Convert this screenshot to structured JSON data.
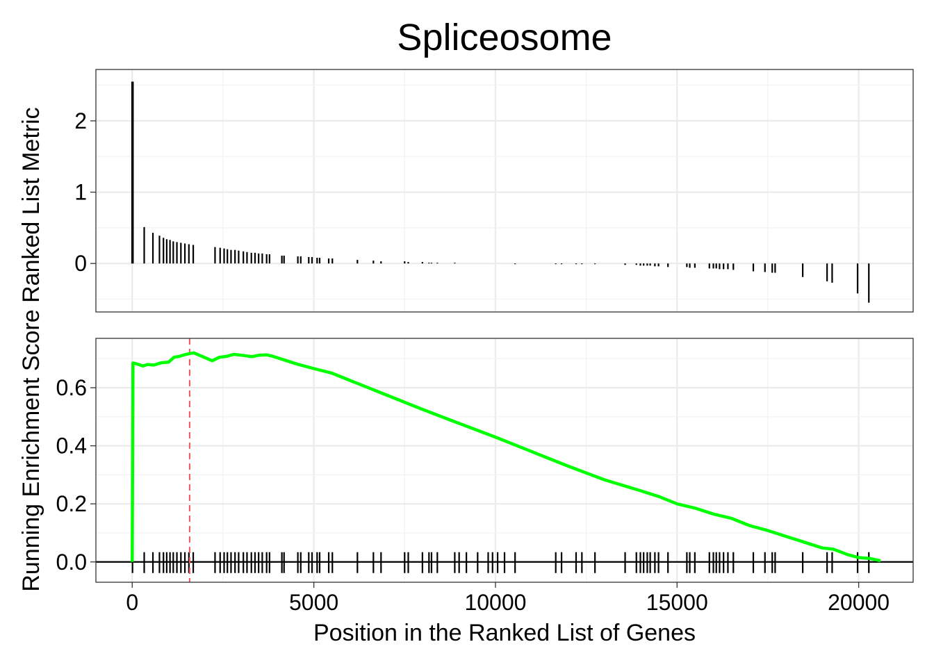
{
  "chart_data": {
    "type": "line",
    "title": "Spliceosome",
    "xlabel": "Position in the Ranked List of Genes",
    "ylabel": "Running Enrichment Score Ranked List Metric",
    "xlim": [
      -1000,
      21500
    ],
    "x_ticks": [
      "0",
      "5000",
      "10000",
      "15000",
      "20000"
    ],
    "x_tick_values": [
      0,
      5000,
      10000,
      15000,
      20000
    ],
    "grid": true,
    "panels": {
      "metric": {
        "ylim": [
          -0.68,
          2.72
        ],
        "y_ticks": [
          "0",
          "1",
          "2"
        ],
        "y_tick_values": [
          0,
          1,
          2
        ],
        "series": [
          {
            "type": "bar",
            "x": [
              8,
              330,
              570,
              750,
              860,
              950,
              1040,
              1130,
              1230,
              1340,
              1450,
              1560,
              1680,
              2280,
              2420,
              2530,
              2620,
              2720,
              2830,
              2930,
              3060,
              3160,
              3280,
              3380,
              3480,
              3580,
              3700,
              3780,
              4120,
              4180,
              4560,
              4640,
              4860,
              4950,
              5090,
              5160,
              5410,
              5510,
              6200,
              6640,
              6850,
              7500,
              7600,
              7990,
              8170,
              8240,
              8400,
              8880,
              9000,
              9200,
              9510,
              9800,
              9920,
              10060,
              10250,
              10540,
              11660,
              11820,
              12220,
              12380,
              12740,
              13570,
              13880,
              13990,
              14080,
              14180,
              14260,
              14390,
              14490,
              14750,
              15270,
              15350,
              15490,
              15890,
              16000,
              16080,
              16170,
              16280,
              16400,
              16550,
              17100,
              17420,
              17620,
              17700,
              18460,
              19130,
              19270,
              19970,
              20280
            ],
            "values": [
              2.55,
              0.51,
              0.43,
              0.39,
              0.36,
              0.34,
              0.33,
              0.31,
              0.3,
              0.29,
              0.28,
              0.27,
              0.26,
              0.23,
              0.22,
              0.21,
              0.2,
              0.19,
              0.19,
              0.18,
              0.17,
              0.16,
              0.15,
              0.15,
              0.14,
              0.14,
              0.13,
              0.13,
              0.11,
              0.11,
              0.1,
              0.1,
              0.09,
              0.09,
              0.08,
              0.08,
              0.07,
              0.07,
              0.05,
              0.04,
              0.03,
              0.03,
              0.02,
              0.02,
              0.01,
              0.01,
              0.01,
              0.01,
              0.0,
              0.0,
              0.0,
              0.0,
              0.0,
              0.0,
              0.0,
              -0.01,
              -0.01,
              -0.01,
              -0.01,
              -0.01,
              -0.01,
              -0.02,
              -0.02,
              -0.03,
              -0.03,
              -0.03,
              -0.03,
              -0.04,
              -0.04,
              -0.05,
              -0.05,
              -0.06,
              -0.06,
              -0.07,
              -0.07,
              -0.07,
              -0.08,
              -0.08,
              -0.08,
              -0.09,
              -0.11,
              -0.12,
              -0.13,
              -0.13,
              -0.19,
              -0.25,
              -0.27,
              -0.42,
              -0.55
            ],
            "color": "#000000"
          }
        ]
      },
      "enrichment": {
        "ylim": [
          -0.07,
          0.77
        ],
        "y_ticks": [
          "0.0",
          "0.2",
          "0.4",
          "0.6"
        ],
        "y_tick_values": [
          0.0,
          0.2,
          0.4,
          0.6
        ],
        "series": [
          {
            "type": "line",
            "x": [
              0,
              20,
              100,
              300,
              420,
              600,
              800,
              1000,
              1150,
              1300,
              1450,
              1600,
              1700,
              2200,
              2400,
              2600,
              2800,
              3000,
              3300,
              3500,
              3700,
              3850,
              4200,
              4500,
              5000,
              5500,
              6000,
              7000,
              8000,
              9000,
              10000,
              11000,
              12000,
              13000,
              14000,
              14500,
              15000,
              15500,
              16000,
              16500,
              17000,
              17500,
              18000,
              18500,
              19000,
              19300,
              19700,
              20000,
              20300,
              20600
            ],
            "values": [
              0.0,
              0.685,
              0.683,
              0.675,
              0.68,
              0.678,
              0.686,
              0.688,
              0.705,
              0.708,
              0.714,
              0.718,
              0.72,
              0.693,
              0.705,
              0.708,
              0.715,
              0.712,
              0.707,
              0.712,
              0.713,
              0.709,
              0.695,
              0.683,
              0.666,
              0.65,
              0.625,
              0.575,
              0.525,
              0.477,
              0.43,
              0.38,
              0.33,
              0.283,
              0.245,
              0.225,
              0.2,
              0.185,
              0.165,
              0.15,
              0.125,
              0.108,
              0.088,
              0.068,
              0.048,
              0.044,
              0.025,
              0.015,
              0.012,
              0.004
            ],
            "color": "#00ff00"
          }
        ],
        "peak_x": 1580,
        "peak_color": "#f0555f",
        "gene_hits_x": [
          8,
          330,
          570,
          750,
          860,
          950,
          1040,
          1130,
          1230,
          1340,
          1450,
          1560,
          1680,
          2280,
          2420,
          2530,
          2620,
          2720,
          2830,
          2930,
          3060,
          3160,
          3280,
          3380,
          3480,
          3580,
          3700,
          3780,
          4120,
          4180,
          4560,
          4640,
          4860,
          4950,
          5090,
          5160,
          5410,
          5510,
          6200,
          6640,
          6850,
          7500,
          7600,
          7990,
          8170,
          8240,
          8400,
          8880,
          9000,
          9200,
          9510,
          9800,
          9920,
          10060,
          10250,
          10540,
          11660,
          11820,
          12220,
          12380,
          12740,
          13570,
          13880,
          13990,
          14080,
          14180,
          14260,
          14390,
          14490,
          14750,
          15270,
          15350,
          15490,
          15890,
          16000,
          16080,
          16170,
          16280,
          16400,
          16550,
          17100,
          17420,
          17620,
          17700,
          18460,
          19130,
          19270,
          19970,
          20280
        ]
      }
    }
  }
}
